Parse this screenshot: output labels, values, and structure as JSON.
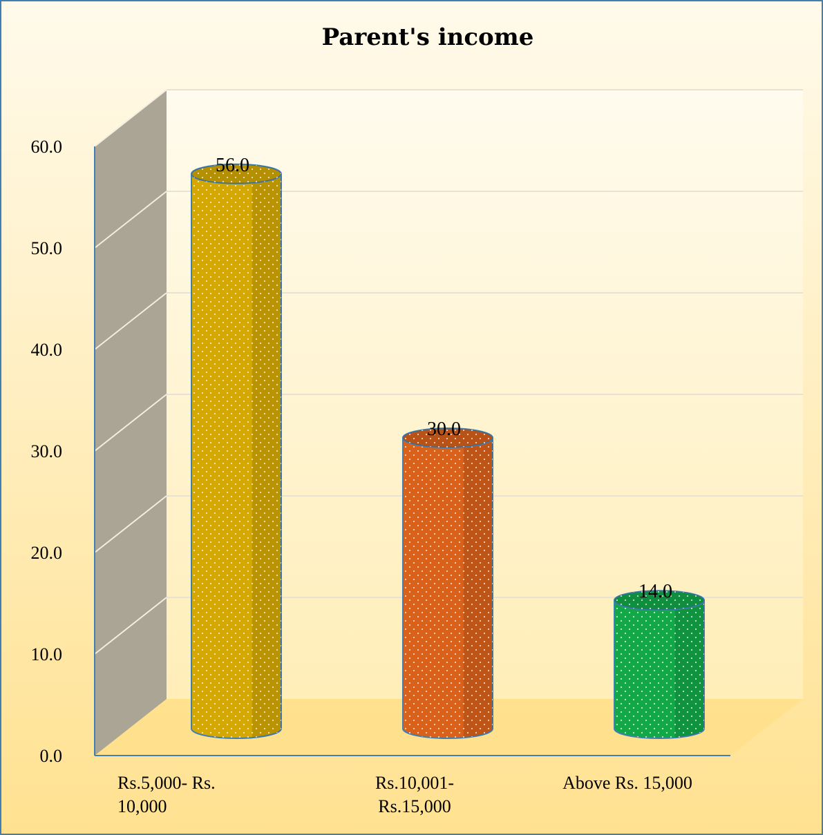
{
  "chart_data": {
    "type": "bar",
    "title": "Parent's income",
    "xlabel": "",
    "ylabel": "",
    "categories": [
      [
        "Rs.5,000- Rs.",
        "10,000"
      ],
      [
        "Rs.10,001-",
        "Rs.15,000"
      ],
      [
        "Above Rs. 15,000"
      ]
    ],
    "values": [
      56.0,
      30.0,
      14.0
    ],
    "data_labels": [
      "56.0",
      "30.0",
      "14.0"
    ],
    "ylim": [
      0,
      60
    ],
    "yticks": [
      "0.0",
      "10.0",
      "20.0",
      "30.0",
      "40.0",
      "50.0",
      "60.0"
    ],
    "grid": true,
    "legend": "none",
    "style": "3d-cylinder",
    "colors": {
      "bars": [
        "#d4a800",
        "#d9611a",
        "#12a848"
      ],
      "bar_outline": "#3f7fb3",
      "side_wall": "#aba595",
      "background_top": "#fff8e4",
      "background_bottom": "#ffe08c",
      "frame": "#3f7fb3",
      "axis": "#3f7fb3"
    }
  }
}
